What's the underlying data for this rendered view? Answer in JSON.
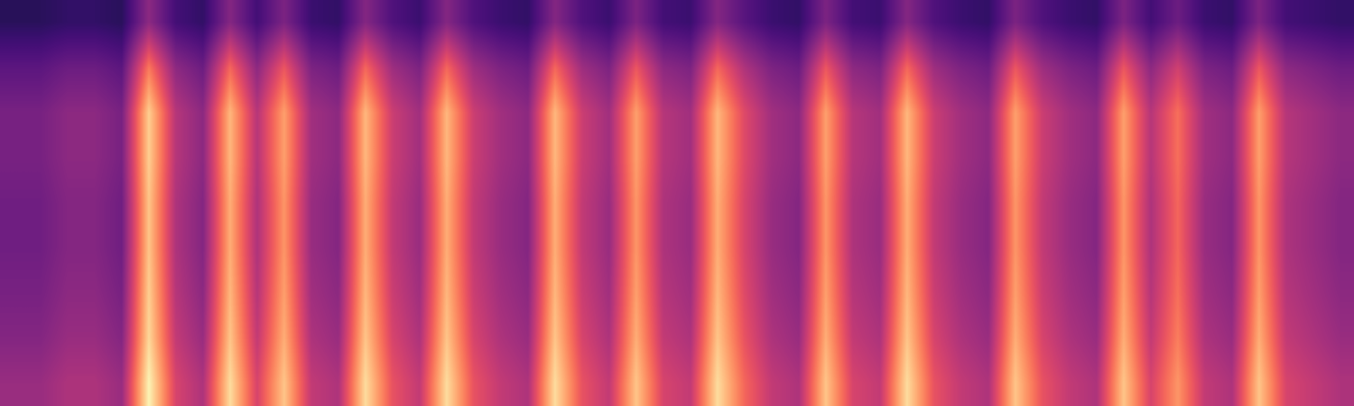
{
  "chart_data": {
    "type": "heatmap",
    "tick_labels": false,
    "color_range": [
      0,
      1
    ],
    "cells": [
      [
        0.16,
        0.16,
        0.18,
        0.18,
        0.16,
        0.4,
        0.22,
        0.18,
        0.38,
        0.22,
        0.36,
        0.2,
        0.18,
        0.38,
        0.25,
        0.2,
        0.38,
        0.25,
        0.2,
        0.18,
        0.38,
        0.25,
        0.2,
        0.36,
        0.22,
        0.2,
        0.38,
        0.27,
        0.2,
        0.18,
        0.36,
        0.22,
        0.2,
        0.38,
        0.25,
        0.2,
        0.18,
        0.36,
        0.25,
        0.2,
        0.18,
        0.36,
        0.22,
        0.32,
        0.2,
        0.18,
        0.36,
        0.22,
        0.2,
        0.18
      ],
      [
        0.28,
        0.28,
        0.32,
        0.32,
        0.28,
        0.72,
        0.4,
        0.32,
        0.68,
        0.4,
        0.64,
        0.36,
        0.32,
        0.68,
        0.44,
        0.36,
        0.68,
        0.44,
        0.36,
        0.32,
        0.68,
        0.44,
        0.36,
        0.64,
        0.4,
        0.36,
        0.68,
        0.48,
        0.36,
        0.32,
        0.64,
        0.4,
        0.36,
        0.68,
        0.44,
        0.36,
        0.32,
        0.64,
        0.44,
        0.36,
        0.32,
        0.64,
        0.4,
        0.56,
        0.36,
        0.32,
        0.64,
        0.4,
        0.36,
        0.32
      ],
      [
        0.35,
        0.35,
        0.4,
        0.4,
        0.35,
        0.9,
        0.5,
        0.4,
        0.85,
        0.5,
        0.8,
        0.45,
        0.4,
        0.85,
        0.55,
        0.45,
        0.85,
        0.55,
        0.45,
        0.4,
        0.85,
        0.55,
        0.45,
        0.8,
        0.5,
        0.45,
        0.85,
        0.6,
        0.45,
        0.4,
        0.8,
        0.5,
        0.45,
        0.85,
        0.55,
        0.45,
        0.4,
        0.8,
        0.55,
        0.45,
        0.4,
        0.8,
        0.5,
        0.7,
        0.45,
        0.4,
        0.8,
        0.5,
        0.45,
        0.4
      ],
      [
        0.35,
        0.35,
        0.4,
        0.4,
        0.35,
        0.9,
        0.5,
        0.4,
        0.85,
        0.5,
        0.8,
        0.45,
        0.4,
        0.85,
        0.55,
        0.45,
        0.85,
        0.55,
        0.45,
        0.4,
        0.85,
        0.55,
        0.45,
        0.8,
        0.5,
        0.45,
        0.85,
        0.6,
        0.45,
        0.4,
        0.8,
        0.5,
        0.45,
        0.85,
        0.55,
        0.45,
        0.4,
        0.8,
        0.55,
        0.45,
        0.4,
        0.8,
        0.5,
        0.7,
        0.45,
        0.4,
        0.8,
        0.5,
        0.45,
        0.4
      ],
      [
        0.33,
        0.33,
        0.38,
        0.38,
        0.33,
        0.88,
        0.48,
        0.38,
        0.83,
        0.48,
        0.78,
        0.43,
        0.38,
        0.83,
        0.53,
        0.43,
        0.83,
        0.53,
        0.43,
        0.38,
        0.83,
        0.53,
        0.43,
        0.78,
        0.48,
        0.43,
        0.83,
        0.58,
        0.43,
        0.38,
        0.78,
        0.48,
        0.43,
        0.83,
        0.53,
        0.43,
        0.38,
        0.78,
        0.53,
        0.43,
        0.38,
        0.78,
        0.48,
        0.68,
        0.43,
        0.38,
        0.78,
        0.48,
        0.43,
        0.38
      ],
      [
        0.33,
        0.33,
        0.38,
        0.38,
        0.33,
        0.88,
        0.48,
        0.38,
        0.83,
        0.48,
        0.78,
        0.43,
        0.38,
        0.83,
        0.53,
        0.43,
        0.83,
        0.53,
        0.43,
        0.38,
        0.83,
        0.53,
        0.43,
        0.78,
        0.48,
        0.43,
        0.83,
        0.58,
        0.43,
        0.38,
        0.78,
        0.48,
        0.43,
        0.83,
        0.53,
        0.43,
        0.38,
        0.78,
        0.53,
        0.43,
        0.38,
        0.78,
        0.48,
        0.68,
        0.43,
        0.38,
        0.78,
        0.48,
        0.43,
        0.38
      ],
      [
        0.35,
        0.35,
        0.4,
        0.4,
        0.35,
        0.9,
        0.5,
        0.4,
        0.85,
        0.5,
        0.8,
        0.45,
        0.4,
        0.85,
        0.55,
        0.45,
        0.85,
        0.55,
        0.45,
        0.4,
        0.85,
        0.55,
        0.45,
        0.8,
        0.5,
        0.45,
        0.85,
        0.6,
        0.45,
        0.4,
        0.8,
        0.5,
        0.45,
        0.85,
        0.55,
        0.45,
        0.4,
        0.8,
        0.55,
        0.45,
        0.4,
        0.8,
        0.5,
        0.7,
        0.45,
        0.4,
        0.8,
        0.5,
        0.45,
        0.4
      ],
      [
        0.38,
        0.38,
        0.43,
        0.43,
        0.38,
        0.92,
        0.53,
        0.43,
        0.88,
        0.53,
        0.83,
        0.48,
        0.43,
        0.88,
        0.58,
        0.48,
        0.88,
        0.58,
        0.48,
        0.43,
        0.88,
        0.58,
        0.48,
        0.83,
        0.53,
        0.48,
        0.88,
        0.63,
        0.48,
        0.43,
        0.83,
        0.53,
        0.48,
        0.88,
        0.58,
        0.48,
        0.43,
        0.83,
        0.58,
        0.48,
        0.43,
        0.83,
        0.53,
        0.73,
        0.48,
        0.43,
        0.83,
        0.53,
        0.48,
        0.43
      ],
      [
        0.43,
        0.43,
        0.48,
        0.48,
        0.43,
        0.98,
        0.58,
        0.48,
        0.93,
        0.58,
        0.88,
        0.53,
        0.48,
        0.93,
        0.63,
        0.53,
        0.93,
        0.63,
        0.53,
        0.48,
        0.93,
        0.63,
        0.53,
        0.88,
        0.58,
        0.53,
        0.93,
        0.68,
        0.53,
        0.48,
        0.88,
        0.58,
        0.53,
        0.93,
        0.63,
        0.53,
        0.48,
        0.88,
        0.63,
        0.53,
        0.48,
        0.88,
        0.58,
        0.78,
        0.53,
        0.48,
        0.88,
        0.58,
        0.53,
        0.48
      ]
    ]
  }
}
